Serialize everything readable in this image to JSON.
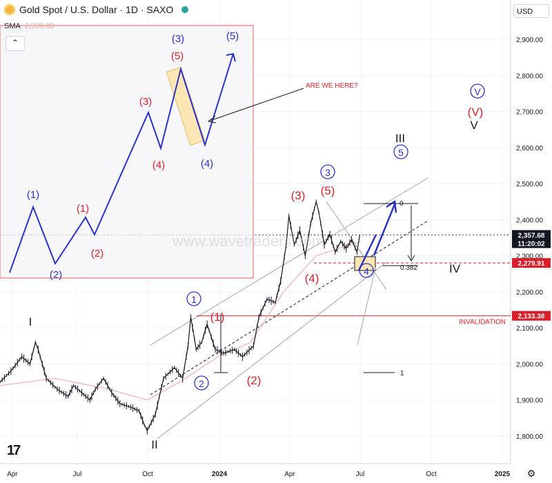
{
  "header": {
    "title": "Gold Spot / U.S. Dollar · 1D · SAXO",
    "currency": "USD",
    "sma_label": "SMA",
    "sma_value": "2,339.08"
  },
  "price_labels": {
    "current": "2,357.68",
    "countdown": "11:20:02",
    "level_red": "2,279.91",
    "invalidation": "2,133.38"
  },
  "annotations": {
    "are_we_here": "ARE WE HERE?",
    "invalidation": "INVALIDATION",
    "watermark": "www.wavetraders.com"
  },
  "colors": {
    "blue": "#2a32c8",
    "red": "#d81f2a",
    "dark": "#131722",
    "grid": "#f0f3fa",
    "box_border": "#e06060",
    "candle": "#131722",
    "sma": "#f2a3a3"
  },
  "chart_data": {
    "type": "line",
    "instrument": "Gold Spot / U.S. Dollar",
    "timeframe": "1D",
    "y_ticks": [
      "2,900.00",
      "2,800.00",
      "2,700.00",
      "2,600.00",
      "2,500.00",
      "2,400.00",
      "2,300.00",
      "2,200.00",
      "2,100.00",
      "2,000.00",
      "1,900.00",
      "1,800.00"
    ],
    "y_values": [
      2900,
      2800,
      2700,
      2600,
      2500,
      2400,
      2300,
      2200,
      2100,
      2000,
      1900,
      1800
    ],
    "ylim": [
      1760,
      2990
    ],
    "x_ticks": [
      "Apr",
      "Jul",
      "Oct",
      "2024",
      "Apr",
      "Jul",
      "Oct",
      "2025"
    ],
    "x_tick_bold": [
      false,
      false,
      false,
      true,
      false,
      false,
      false,
      true
    ],
    "price_path": [
      [
        0.0,
        1950
      ],
      [
        2.0,
        1980
      ],
      [
        4.0,
        2020
      ],
      [
        5.5,
        2000
      ],
      [
        6.5,
        2060
      ],
      [
        7.0,
        2040
      ],
      [
        8.5,
        1960
      ],
      [
        10.5,
        1930
      ],
      [
        12.5,
        1910
      ],
      [
        13.5,
        1940
      ],
      [
        15.0,
        1920
      ],
      [
        16.5,
        1900
      ],
      [
        17.5,
        1930
      ],
      [
        19.0,
        1960
      ],
      [
        20.5,
        1920
      ],
      [
        22.0,
        1890
      ],
      [
        24.0,
        1880
      ],
      [
        25.5,
        1870
      ],
      [
        26.5,
        1830
      ],
      [
        27.0,
        1815
      ],
      [
        28.5,
        1860
      ],
      [
        30.0,
        1960
      ],
      [
        32.0,
        1990
      ],
      [
        33.5,
        1960
      ],
      [
        34.5,
        2050
      ],
      [
        35.0,
        2130
      ],
      [
        36.0,
        2040
      ],
      [
        37.0,
        2060
      ],
      [
        38.0,
        2110
      ],
      [
        39.5,
        2040
      ],
      [
        41.0,
        2030
      ],
      [
        43.0,
        2040
      ],
      [
        44.5,
        2020
      ],
      [
        46.5,
        2050
      ],
      [
        47.5,
        2130
      ],
      [
        49.0,
        2180
      ],
      [
        50.5,
        2170
      ],
      [
        51.5,
        2230
      ],
      [
        52.5,
        2330
      ],
      [
        53.0,
        2410
      ],
      [
        54.0,
        2330
      ],
      [
        55.0,
        2370
      ],
      [
        56.0,
        2300
      ],
      [
        57.0,
        2390
      ],
      [
        58.0,
        2450
      ],
      [
        58.5,
        2420
      ],
      [
        59.5,
        2330
      ],
      [
        60.5,
        2360
      ],
      [
        61.5,
        2310
      ],
      [
        62.5,
        2340
      ],
      [
        63.5,
        2320
      ],
      [
        64.5,
        2345
      ],
      [
        65.5,
        2310
      ],
      [
        66.0,
        2358
      ]
    ],
    "sma_path": [
      [
        0.0,
        1940
      ],
      [
        10.0,
        1960
      ],
      [
        20.0,
        1930
      ],
      [
        27.0,
        1900
      ],
      [
        33.0,
        1950
      ],
      [
        40.0,
        2020
      ],
      [
        46.0,
        2060
      ],
      [
        52.0,
        2200
      ],
      [
        58.0,
        2300
      ],
      [
        66.0,
        2339
      ]
    ],
    "current_price": 2357.68,
    "level_red": 2279.91,
    "invalidation": 2133.38,
    "fib_levels": [
      {
        "label": "0",
        "value": 2450
      },
      {
        "label": "0.382",
        "value": 2270
      },
      {
        "label": "1",
        "value": 1975
      }
    ],
    "wave_labels": [
      {
        "text": "I",
        "color": "dark",
        "circle": false
      },
      {
        "text": "II",
        "color": "dark",
        "circle": false
      },
      {
        "text": "III",
        "color": "dark",
        "circle": false
      },
      {
        "text": "IV",
        "color": "dark",
        "circle": false
      },
      {
        "text": "V",
        "color": "dark",
        "circle": false
      },
      {
        "text": "1",
        "color": "blue",
        "circle": true
      },
      {
        "text": "2",
        "color": "blue",
        "circle": true
      },
      {
        "text": "3",
        "color": "blue",
        "circle": true
      },
      {
        "text": "4",
        "color": "blue",
        "circle": true
      },
      {
        "text": "5",
        "color": "blue",
        "circle": true
      },
      {
        "text": "V",
        "color": "blue",
        "circle": true
      },
      {
        "text": "(V)",
        "color": "red",
        "circle": false
      },
      {
        "text": "(1)",
        "color": "red",
        "circle": false
      },
      {
        "text": "(2)",
        "color": "red",
        "circle": false
      },
      {
        "text": "(3)",
        "color": "red",
        "circle": false
      },
      {
        "text": "(4)",
        "color": "red",
        "circle": false
      },
      {
        "text": "(5)",
        "color": "red",
        "circle": false
      }
    ],
    "inset_labels": [
      {
        "text": "(1)",
        "color": "blue"
      },
      {
        "text": "(2)",
        "color": "blue"
      },
      {
        "text": "(1)",
        "color": "red"
      },
      {
        "text": "(2)",
        "color": "red"
      },
      {
        "text": "(3)",
        "color": "red"
      },
      {
        "text": "(4)",
        "color": "red"
      },
      {
        "text": "(5)",
        "color": "red"
      },
      {
        "text": "(3)",
        "color": "blue"
      },
      {
        "text": "(4)",
        "color": "blue"
      },
      {
        "text": "(5)",
        "color": "blue"
      }
    ],
    "grid": true
  }
}
